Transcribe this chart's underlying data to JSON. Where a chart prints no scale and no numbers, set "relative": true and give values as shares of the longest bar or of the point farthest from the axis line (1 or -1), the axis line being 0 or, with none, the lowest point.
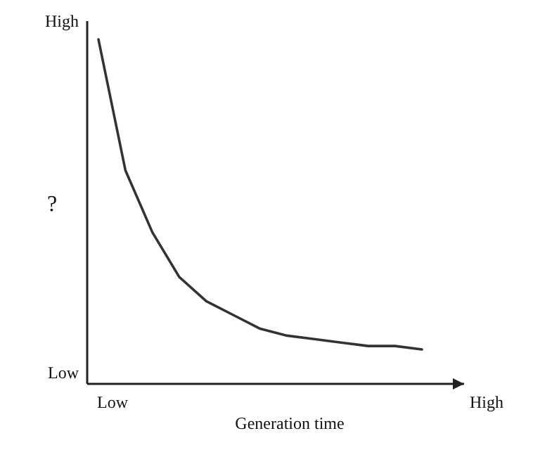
{
  "chart_data": {
    "type": "line",
    "xlabel": "Generation time",
    "ylabel": "?",
    "relative": true,
    "annotations": [
      "High",
      "Low",
      "Low",
      "High"
    ],
    "categories": [
      null,
      null,
      null,
      null,
      null,
      null,
      null,
      null,
      null,
      null,
      null,
      null,
      null
    ],
    "series": [
      {
        "color": "#333333",
        "values": [
          1,
          0.62,
          0.44,
          0.31,
          0.24,
          0.2,
          0.16,
          0.14,
          0.13,
          0.12,
          0.11,
          0.11,
          0.1
        ]
      }
    ],
    "marker": "none",
    "line_style": "solid"
  }
}
